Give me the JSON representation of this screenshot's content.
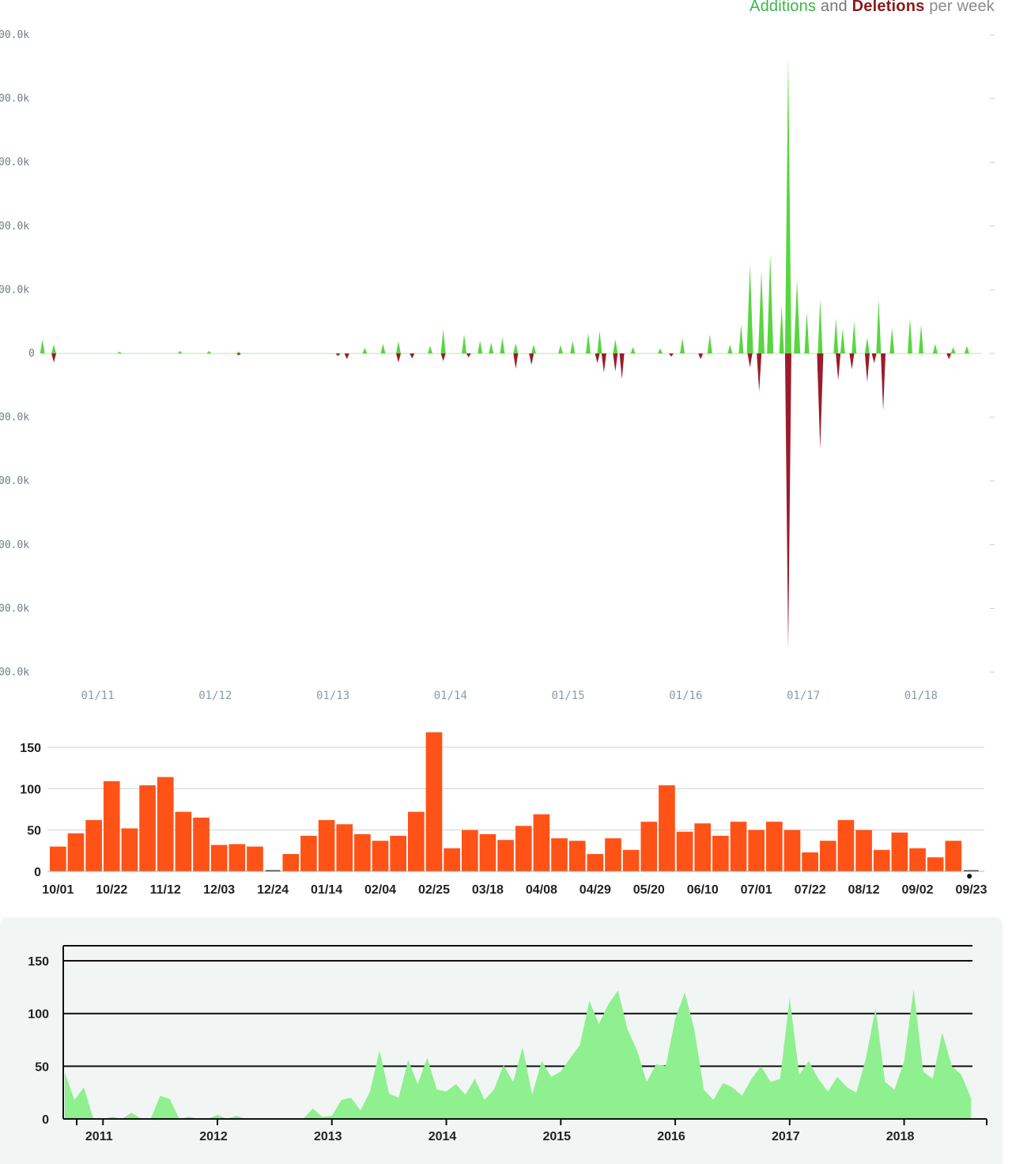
{
  "chart_data": [
    {
      "type": "area",
      "title": "Additions and Deletions per week",
      "legend": {
        "position": "top-right",
        "additions": "Additions",
        "and": "and",
        "deletions": "Deletions",
        "suffix": "per week"
      },
      "colors": {
        "additions": "#57d63f",
        "deletions": "#9b1b2a"
      },
      "ylim": [
        -500000,
        500000
      ],
      "y_ticks": [
        "00.0k",
        "00.0k",
        "00.0k",
        "00.0k",
        "00.0k",
        "0",
        "00.0k",
        "00.0k",
        "00.0k",
        "00.0k",
        "00.0k"
      ],
      "x_ticks": [
        "01/11",
        "01/12",
        "01/13",
        "01/14",
        "01/15",
        "01/16",
        "01/17",
        "01/18"
      ],
      "x_range": [
        "2010-09",
        "2018-09"
      ],
      "grid": false,
      "series": [
        {
          "name": "Additions",
          "x": [
            "2010-09-05",
            "2010-10-10",
            "2011-05-01",
            "2011-11-06",
            "2012-02-05",
            "2012-05-06",
            "2013-06-02",
            "2013-07-28",
            "2013-09-15",
            "2013-12-22",
            "2014-02-02",
            "2014-04-06",
            "2014-05-25",
            "2014-06-29",
            "2014-08-03",
            "2014-09-14",
            "2014-11-09",
            "2015-02-01",
            "2015-03-08",
            "2015-04-26",
            "2015-05-31",
            "2015-07-19",
            "2015-09-13",
            "2015-12-06",
            "2016-02-14",
            "2016-05-08",
            "2016-07-10",
            "2016-08-14",
            "2016-09-11",
            "2016-10-16",
            "2016-11-13",
            "2016-12-18",
            "2017-01-08",
            "2017-02-05",
            "2017-03-05",
            "2017-04-16",
            "2017-06-04",
            "2017-06-25",
            "2017-07-30",
            "2017-09-10",
            "2017-10-15",
            "2017-11-26",
            "2018-01-21",
            "2018-02-25",
            "2018-04-08",
            "2018-06-03",
            "2018-07-15"
          ],
          "values": [
            22000,
            14000,
            3000,
            4000,
            4000,
            3000,
            9000,
            15000,
            19000,
            12000,
            38000,
            30000,
            20000,
            17000,
            25000,
            16000,
            14000,
            13000,
            20000,
            32000,
            36000,
            22000,
            10000,
            8000,
            24000,
            30000,
            14000,
            46000,
            140000,
            130000,
            155000,
            75000,
            465000,
            115000,
            65000,
            85000,
            55000,
            38000,
            50000,
            25000,
            85000,
            40000,
            55000,
            45000,
            15000,
            10000,
            12000
          ]
        },
        {
          "name": "Deletions",
          "x": [
            "2010-10-10",
            "2012-05-06",
            "2013-03-10",
            "2013-04-07",
            "2013-09-15",
            "2013-10-27",
            "2014-02-02",
            "2014-04-20",
            "2014-09-14",
            "2014-11-02",
            "2015-05-24",
            "2015-06-14",
            "2015-07-19",
            "2015-08-09",
            "2016-01-10",
            "2016-04-10",
            "2016-09-11",
            "2016-10-09",
            "2017-01-08",
            "2017-04-16",
            "2017-06-11",
            "2017-07-23",
            "2017-09-10",
            "2017-10-01",
            "2017-10-29",
            "2018-05-20"
          ],
          "values": [
            -14000,
            -3000,
            -4000,
            -9000,
            -14000,
            -8000,
            -12000,
            -6000,
            -24000,
            -18000,
            -15000,
            -30000,
            -28000,
            -40000,
            -5000,
            -9000,
            -22000,
            -60000,
            -465000,
            -150000,
            -42000,
            -25000,
            -45000,
            -15000,
            -90000,
            -9000
          ]
        }
      ]
    },
    {
      "type": "bar",
      "title": "",
      "color": "#ff5216",
      "ylim": [
        0,
        175
      ],
      "y_ticks": [
        "0",
        "50",
        "100",
        "150"
      ],
      "grid": true,
      "x_tick_labels": [
        "10/01",
        "10/22",
        "11/12",
        "12/03",
        "12/24",
        "01/14",
        "02/04",
        "02/25",
        "03/18",
        "04/08",
        "04/29",
        "05/20",
        "06/10",
        "07/01",
        "07/22",
        "08/12",
        "09/02",
        "09/23"
      ],
      "categories": [
        "10/01",
        "10/08",
        "10/15",
        "10/22",
        "10/29",
        "11/05",
        "11/12",
        "11/19",
        "11/26",
        "12/03",
        "12/10",
        "12/17",
        "12/24",
        "12/31",
        "01/07",
        "01/14",
        "01/21",
        "01/28",
        "02/04",
        "02/11",
        "02/18",
        "02/25",
        "03/04",
        "03/11",
        "03/18",
        "03/25",
        "04/01",
        "04/08",
        "04/15",
        "04/22",
        "04/29",
        "05/06",
        "05/13",
        "05/20",
        "05/27",
        "06/03",
        "06/10",
        "06/17",
        "06/24",
        "07/01",
        "07/08",
        "07/15",
        "07/22",
        "07/29",
        "08/05",
        "08/12",
        "08/19",
        "08/26",
        "09/02",
        "09/09",
        "09/16",
        "09/23"
      ],
      "values": [
        30,
        46,
        62,
        109,
        52,
        104,
        114,
        72,
        65,
        32,
        33,
        30,
        0,
        21,
        43,
        62,
        57,
        45,
        37,
        43,
        72,
        168,
        28,
        50,
        45,
        38,
        55,
        69,
        40,
        37,
        21,
        40,
        26,
        60,
        104,
        48,
        58,
        43,
        60,
        50,
        60,
        50,
        23,
        37,
        62,
        50,
        26,
        47,
        28,
        17,
        37,
        1
      ]
    },
    {
      "type": "area",
      "title": "",
      "color": "#8ff08f",
      "ylim": [
        0,
        165
      ],
      "y_ticks": [
        "0",
        "50",
        "100",
        "150"
      ],
      "grid": true,
      "x_ticks": [
        "2011",
        "2012",
        "2013",
        "2014",
        "2015",
        "2016",
        "2017",
        "2018"
      ],
      "x": [
        "2010-09",
        "2010-10",
        "2010-11",
        "2010-12",
        "2011-01",
        "2011-02",
        "2011-03",
        "2011-04",
        "2011-05",
        "2011-06",
        "2011-07",
        "2011-08",
        "2011-09",
        "2011-10",
        "2011-11",
        "2011-12",
        "2012-01",
        "2012-02",
        "2012-03",
        "2012-04",
        "2012-05",
        "2012-06",
        "2012-07",
        "2012-08",
        "2012-09",
        "2012-10",
        "2012-11",
        "2012-12",
        "2013-01",
        "2013-02",
        "2013-03",
        "2013-04",
        "2013-05",
        "2013-06",
        "2013-07",
        "2013-08",
        "2013-09",
        "2013-10",
        "2013-11",
        "2013-12",
        "2014-01",
        "2014-02",
        "2014-03",
        "2014-04",
        "2014-05",
        "2014-06",
        "2014-07",
        "2014-08",
        "2014-09",
        "2014-10",
        "2014-11",
        "2014-12",
        "2015-01",
        "2015-02",
        "2015-03",
        "2015-04",
        "2015-05",
        "2015-06",
        "2015-07",
        "2015-08",
        "2015-09",
        "2015-10",
        "2015-11",
        "2015-12",
        "2016-01",
        "2016-02",
        "2016-03",
        "2016-04",
        "2016-05",
        "2016-06",
        "2016-07",
        "2016-08",
        "2016-09",
        "2016-10",
        "2016-11",
        "2016-12",
        "2017-01",
        "2017-02",
        "2017-03",
        "2017-04",
        "2017-05",
        "2017-06",
        "2017-07",
        "2017-08",
        "2017-09",
        "2017-10",
        "2017-11",
        "2017-12",
        "2018-01",
        "2018-02",
        "2018-03",
        "2018-04",
        "2018-05",
        "2018-06",
        "2018-07",
        "2018-08"
      ],
      "values": [
        44,
        18,
        30,
        0,
        0,
        2,
        0,
        6,
        0,
        0,
        22,
        19,
        0,
        2,
        0,
        0,
        4,
        0,
        3,
        0,
        0,
        0,
        0,
        0,
        0,
        0,
        10,
        2,
        3,
        18,
        20,
        8,
        26,
        65,
        24,
        20,
        56,
        33,
        58,
        28,
        26,
        33,
        23,
        38,
        18,
        28,
        51,
        35,
        68,
        23,
        55,
        40,
        45,
        58,
        70,
        112,
        90,
        109,
        122,
        85,
        65,
        35,
        52,
        50,
        95,
        120,
        85,
        28,
        18,
        34,
        30,
        22,
        38,
        50,
        35,
        38,
        115,
        42,
        55,
        38,
        26,
        40,
        30,
        25,
        58,
        105,
        35,
        28,
        55,
        123,
        45,
        38,
        82,
        50,
        42,
        20
      ]
    }
  ]
}
